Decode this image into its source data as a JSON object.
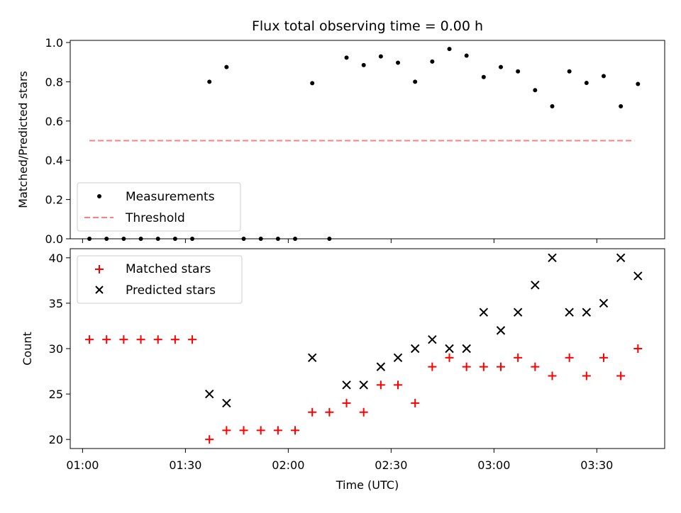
{
  "chart_data": [
    {
      "type": "scatter",
      "title": "Flux total observing time = 0.00 h",
      "ylabel": "Matched/Predicted stars",
      "xlabel": "",
      "ylim": [
        0.0,
        1.0
      ],
      "yticks": [
        "0.0",
        "0.2",
        "0.4",
        "0.6",
        "0.8",
        "1.0"
      ],
      "threshold": {
        "value": 0.5,
        "x": [
          "01:02",
          "03:41"
        ],
        "color": "#ff7f7f"
      },
      "legend": {
        "position": "lower-left",
        "entries": [
          "Measurements",
          "Threshold"
        ]
      },
      "series": [
        {
          "name": "Measurements",
          "color": "#000000",
          "x": [
            "01:02",
            "01:07",
            "01:12",
            "01:17",
            "01:22",
            "01:27",
            "01:32",
            "01:37",
            "01:42",
            "01:47",
            "01:52",
            "01:57",
            "02:02",
            "02:07",
            "02:12",
            "02:17",
            "02:22",
            "02:27",
            "02:32",
            "02:37",
            "02:42",
            "02:47",
            "02:52",
            "02:57",
            "03:02",
            "03:07",
            "03:12",
            "03:17",
            "03:22",
            "03:27",
            "03:32",
            "03:37",
            "03:42"
          ],
          "y": [
            0,
            0,
            0,
            0,
            0,
            0,
            0,
            0.8,
            0.875,
            0,
            0,
            0,
            0,
            0.793,
            0,
            0.923,
            0.885,
            0.929,
            0.897,
            0.8,
            0.903,
            0.967,
            0.933,
            0.824,
            0.875,
            0.853,
            0.757,
            0.675,
            0.853,
            0.794,
            0.829,
            0.675,
            0.789
          ]
        }
      ]
    },
    {
      "type": "scatter",
      "title": "",
      "ylabel": "Count",
      "xlabel": "Time (UTC)",
      "ylim": [
        19,
        41
      ],
      "yticks": [
        "20",
        "25",
        "30",
        "35",
        "40"
      ],
      "xticks": [
        "01:00",
        "01:30",
        "02:00",
        "02:30",
        "03:00",
        "03:30"
      ],
      "legend": {
        "position": "upper-left",
        "entries": [
          "Matched stars",
          "Predicted stars"
        ]
      },
      "series": [
        {
          "name": "Matched stars",
          "marker": "plus",
          "color": "#ff0000",
          "x": [
            "01:02",
            "01:07",
            "01:12",
            "01:17",
            "01:22",
            "01:27",
            "01:32",
            "01:37",
            "01:42",
            "01:47",
            "01:52",
            "01:57",
            "02:02",
            "02:07",
            "02:12",
            "02:17",
            "02:22",
            "02:27",
            "02:32",
            "02:37",
            "02:42",
            "02:47",
            "02:52",
            "02:57",
            "03:02",
            "03:07",
            "03:12",
            "03:17",
            "03:22",
            "03:27",
            "03:32",
            "03:37",
            "03:42"
          ],
          "y": [
            31,
            31,
            31,
            31,
            31,
            31,
            31,
            20,
            21,
            21,
            21,
            21,
            21,
            23,
            23,
            24,
            23,
            26,
            26,
            24,
            28,
            29,
            28,
            28,
            28,
            29,
            28,
            27,
            29,
            27,
            29,
            27,
            30
          ]
        },
        {
          "name": "Predicted stars",
          "marker": "x",
          "color": "#000000",
          "x": [
            "01:37",
            "01:42",
            "02:07",
            "02:17",
            "02:22",
            "02:27",
            "02:32",
            "02:37",
            "02:42",
            "02:47",
            "02:52",
            "02:57",
            "03:02",
            "03:07",
            "03:12",
            "03:17",
            "03:22",
            "03:27",
            "03:32",
            "03:37",
            "03:42"
          ],
          "y": [
            25,
            24,
            29,
            26,
            26,
            28,
            29,
            30,
            31,
            30,
            30,
            34,
            32,
            34,
            37,
            40,
            34,
            34,
            35,
            40,
            38
          ]
        }
      ]
    }
  ]
}
